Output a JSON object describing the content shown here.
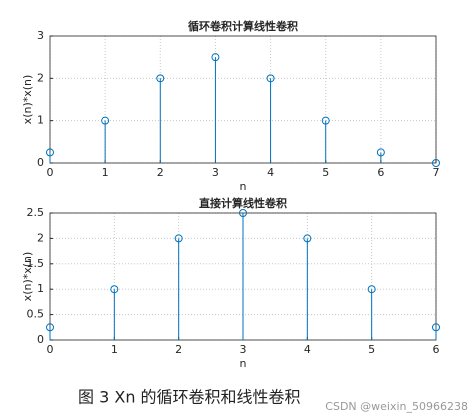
{
  "chart_data": [
    {
      "type": "stem",
      "title": "循环卷积计算线性卷积",
      "xlabel": "n",
      "ylabel": "x(n)*x(n)",
      "x": [
        0,
        1,
        2,
        3,
        4,
        5,
        6,
        7
      ],
      "values": [
        0.25,
        1,
        2,
        2.5,
        2,
        1,
        0.25,
        0
      ],
      "color": "#0072bd",
      "xlim": [
        0,
        7
      ],
      "xticks": [
        0,
        1,
        2,
        3,
        4,
        5,
        6,
        7
      ],
      "ylim": [
        0,
        3
      ],
      "yticks": [
        0,
        1,
        2,
        3
      ],
      "grid": true
    },
    {
      "type": "stem",
      "title": "直接计算线性卷积",
      "xlabel": "n",
      "ylabel": "x(n)*x(n)",
      "x": [
        0,
        1,
        2,
        3,
        4,
        5,
        6
      ],
      "values": [
        0.25,
        1,
        2,
        2.5,
        2,
        1,
        0.25
      ],
      "color": "#0072bd",
      "xlim": [
        0,
        6
      ],
      "xticks": [
        0,
        1,
        2,
        3,
        4,
        5,
        6
      ],
      "ylim": [
        0,
        2.5
      ],
      "yticks": [
        0,
        0.5,
        1,
        1.5,
        2,
        2.5
      ],
      "grid": true
    }
  ],
  "caption": "图 3 Xn 的循环卷积和线性卷积",
  "watermark": "CSDN @weixin_50966238"
}
